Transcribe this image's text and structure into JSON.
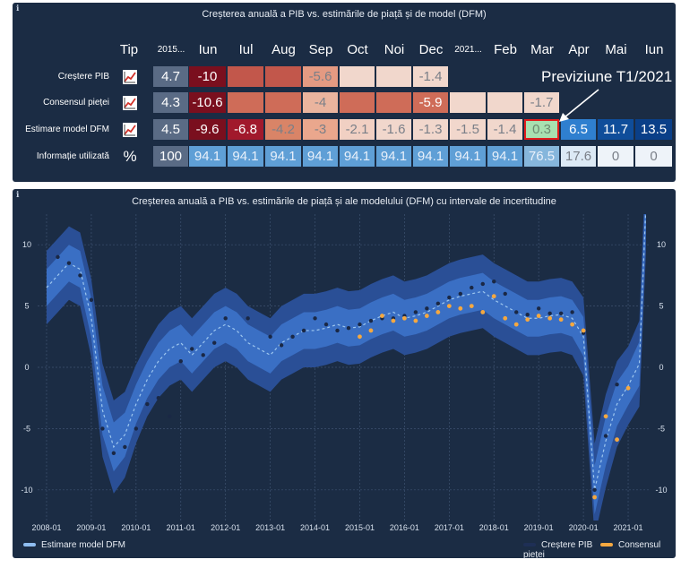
{
  "table": {
    "title": "Creșterea anuală a PIB vs. estimările de piață și de model (DFM)",
    "header": {
      "tip": "Tip",
      "columns": [
        "2015...",
        "Iun",
        "Iul",
        "Aug",
        "Sep",
        "Oct",
        "Noi",
        "Dec",
        "2021...",
        "Feb",
        "Mar",
        "Apr",
        "Mai",
        "Iun"
      ]
    },
    "rows": [
      {
        "label": "Creștere PIB",
        "type_icon": "trend-chart-icon",
        "values": [
          "4.7",
          "-10",
          "",
          "",
          "-5.6",
          "",
          "",
          "-1.4",
          "",
          "",
          "",
          "",
          "",
          ""
        ],
        "colors": [
          "#5a6b85",
          "#7a0f1e",
          "#c2574b",
          "#c2574b",
          "#e49a82",
          "#f1d7cc",
          "#f1d7cc",
          "#f1d7cc",
          null,
          null,
          null,
          null,
          null,
          null
        ]
      },
      {
        "label": "Consensul pieței",
        "type_icon": "trend-chart-icon",
        "values": [
          "4.3",
          "-10.6",
          "",
          "",
          "-4",
          "",
          "",
          "-5.9",
          "",
          "",
          "-1.7",
          "",
          "",
          ""
        ],
        "colors": [
          "#5a6b85",
          "#7a0f1e",
          "#cf6c58",
          "#cf6c58",
          "#eab49e",
          "#cf6c58",
          "#cf6c58",
          "#cf6c58",
          "#f1d7cc",
          "#f1d7cc",
          "#f1d7cc",
          null,
          null,
          null
        ]
      },
      {
        "label": "Estimare model DFM",
        "type_icon": "trend-chart-icon",
        "values": [
          "4.5",
          "-9.6",
          "-6.8",
          "-4.2",
          "-3",
          "-2.1",
          "-1.6",
          "-1.3",
          "-1.5",
          "-1.4",
          "0.3",
          "6.5",
          "11.7",
          "13.5"
        ],
        "colors": [
          "#5a6b85",
          "#7a0f1e",
          "#a1192c",
          "#d98467",
          "#eaa78d",
          "#f1d0c3",
          "#f1d7cc",
          "#f1d7cc",
          "#f1d7cc",
          "#f1d7cc",
          "#a8e0b0",
          "#2f7fcf",
          "#0f4d9a",
          "#0a3f88"
        ]
      },
      {
        "label": "Informație utilizată",
        "type_icon": "percent-icon",
        "values": [
          "100",
          "94.1",
          "94.1",
          "94.1",
          "94.1",
          "94.1",
          "94.1",
          "94.1",
          "94.1",
          "94.1",
          "76.5",
          "17.6",
          "0",
          "0"
        ],
        "colors": [
          "#5a6b85",
          "#5f9fd6",
          "#5f9fd6",
          "#5f9fd6",
          "#5f9fd6",
          "#5f9fd6",
          "#5f9fd6",
          "#5f9fd6",
          "#5f9fd6",
          "#5f9fd6",
          "#86b6dc",
          "#dce9f5",
          "#eef3f9",
          "#eef3f9"
        ]
      }
    ],
    "annotation": "Previziune T1/2021",
    "type_icon_percent": "%"
  },
  "chart_data": {
    "type": "line",
    "title": "Creșterea anuală a PIB vs. estimările de piață și ale modelului (DFM) cu intervale de incertitudine",
    "xlabel": "",
    "ylabel": "",
    "x_ticks": [
      "2008-01",
      "2009-01",
      "2010-01",
      "2011-01",
      "2012-01",
      "2013-01",
      "2014-01",
      "2015-01",
      "2016-01",
      "2017-01",
      "2018-01",
      "2019-01",
      "2020-01",
      "2021-01"
    ],
    "y_ticks": [
      10,
      5,
      0,
      -5,
      -10
    ],
    "xlim": [
      2007.8,
      2021.5
    ],
    "ylim": [
      -12.5,
      12.5
    ],
    "legend": {
      "left": "Estimare model DFM",
      "right": [
        "Creștere PIB",
        "Consensul pieței"
      ]
    },
    "colors": {
      "band_outer": "#2a4f96",
      "band_inner": "#3a6fc4",
      "dfm_line": "#9ec7ef",
      "gdp_dots": "#1a2845",
      "consensus_dots": "#f5a840"
    },
    "series": [
      {
        "name": "Estimare model DFM",
        "x": [
          2008.0,
          2008.25,
          2008.5,
          2008.75,
          2009.0,
          2009.25,
          2009.5,
          2009.75,
          2010.0,
          2010.25,
          2010.5,
          2010.75,
          2011.0,
          2011.25,
          2011.5,
          2011.75,
          2012.0,
          2012.25,
          2012.5,
          2012.75,
          2013.0,
          2013.25,
          2013.5,
          2013.75,
          2014.0,
          2014.25,
          2014.5,
          2014.75,
          2015.0,
          2015.25,
          2015.5,
          2015.75,
          2016.0,
          2016.25,
          2016.5,
          2016.75,
          2017.0,
          2017.25,
          2017.5,
          2017.75,
          2018.0,
          2018.25,
          2018.5,
          2018.75,
          2019.0,
          2019.25,
          2019.5,
          2019.75,
          2020.0,
          2020.25,
          2020.5,
          2020.75,
          2021.0,
          2021.25,
          2021.4
        ],
        "values": [
          6.5,
          7.5,
          8.5,
          8.0,
          4.0,
          -3.5,
          -6.5,
          -5.5,
          -3.0,
          -1.0,
          0.5,
          1.5,
          2.0,
          1.0,
          2.0,
          3.0,
          3.5,
          3.0,
          2.0,
          1.5,
          1.0,
          2.0,
          2.5,
          3.0,
          3.0,
          3.2,
          3.5,
          3.2,
          3.3,
          3.8,
          4.2,
          4.5,
          4.0,
          4.2,
          4.5,
          5.0,
          5.5,
          5.8,
          6.0,
          6.2,
          5.5,
          5.0,
          4.5,
          4.0,
          4.0,
          4.2,
          4.3,
          4.0,
          2.5,
          -10.0,
          -6.0,
          -3.0,
          -1.5,
          0.3,
          13.5
        ],
        "band_inner": [
          1.5,
          1.5,
          1.5,
          1.5,
          1.6,
          2.0,
          2.0,
          1.8,
          1.6,
          1.5,
          1.5,
          1.5,
          1.5,
          1.5,
          1.5,
          1.5,
          1.5,
          1.5,
          1.5,
          1.5,
          1.5,
          1.5,
          1.5,
          1.5,
          1.5,
          1.5,
          1.5,
          1.5,
          1.5,
          1.5,
          1.5,
          1.5,
          1.5,
          1.5,
          1.5,
          1.5,
          1.5,
          1.5,
          1.5,
          1.5,
          1.5,
          1.5,
          1.5,
          1.5,
          1.5,
          1.5,
          1.5,
          1.5,
          1.6,
          2.0,
          2.0,
          1.8,
          1.6,
          1.8,
          2.0
        ],
        "band_outer": [
          3.0,
          3.0,
          3.0,
          3.0,
          3.2,
          3.8,
          3.8,
          3.5,
          3.2,
          3.0,
          3.0,
          3.0,
          3.0,
          3.0,
          3.0,
          3.0,
          3.0,
          3.0,
          3.0,
          3.0,
          3.0,
          3.0,
          3.0,
          3.0,
          3.0,
          3.0,
          3.0,
          3.0,
          3.0,
          3.0,
          3.0,
          3.0,
          3.0,
          3.0,
          3.0,
          3.0,
          3.0,
          3.0,
          3.0,
          3.0,
          3.0,
          3.0,
          3.0,
          3.0,
          3.0,
          3.0,
          3.0,
          3.0,
          3.2,
          3.8,
          3.8,
          3.5,
          3.2,
          3.5,
          4.0
        ]
      },
      {
        "name": "Creștere PIB",
        "x": [
          2008.25,
          2008.5,
          2008.75,
          2009.0,
          2009.25,
          2009.5,
          2009.75,
          2010.0,
          2010.25,
          2010.5,
          2010.75,
          2011.0,
          2011.25,
          2011.5,
          2011.75,
          2012.0,
          2012.5,
          2013.0,
          2013.25,
          2013.5,
          2013.75,
          2014.0,
          2014.25,
          2014.5,
          2014.75,
          2015.0,
          2015.25,
          2015.5,
          2015.75,
          2016.0,
          2016.25,
          2016.5,
          2016.75,
          2017.0,
          2017.25,
          2017.5,
          2017.75,
          2018.0,
          2018.25,
          2018.5,
          2018.75,
          2019.0,
          2019.25,
          2019.5,
          2019.75,
          2020.0,
          2020.25,
          2020.5,
          2020.75
        ],
        "values": [
          9.0,
          8.5,
          7.5,
          5.5,
          -5.0,
          -7.0,
          -6.5,
          -5.0,
          -3.0,
          -2.5,
          -4.0,
          0.5,
          1.5,
          1.0,
          2.0,
          4.0,
          4.0,
          2.5,
          1.8,
          2.5,
          3.0,
          4.0,
          3.5,
          3.0,
          3.2,
          3.5,
          3.8,
          4.0,
          4.0,
          4.2,
          4.5,
          4.8,
          5.2,
          5.7,
          6.0,
          6.5,
          6.8,
          7.0,
          6.0,
          4.5,
          4.3,
          4.8,
          4.4,
          4.4,
          4.5,
          2.8,
          -10.0,
          -5.6,
          -1.4
        ]
      },
      {
        "name": "Consensul pieței",
        "x": [
          2015.0,
          2015.25,
          2015.5,
          2015.75,
          2016.0,
          2016.25,
          2016.5,
          2016.75,
          2017.0,
          2017.25,
          2017.5,
          2017.75,
          2018.0,
          2018.25,
          2018.5,
          2018.75,
          2019.0,
          2019.25,
          2019.5,
          2019.75,
          2020.0,
          2020.25,
          2020.5,
          2020.75,
          2021.0
        ],
        "values": [
          2.5,
          3.0,
          4.2,
          3.8,
          4.0,
          3.8,
          4.2,
          4.5,
          5.0,
          4.8,
          5.0,
          4.5,
          5.8,
          4.0,
          3.5,
          3.9,
          4.2,
          4.0,
          3.9,
          3.5,
          3.0,
          -10.6,
          -4.0,
          -5.9,
          -1.7
        ]
      }
    ]
  }
}
